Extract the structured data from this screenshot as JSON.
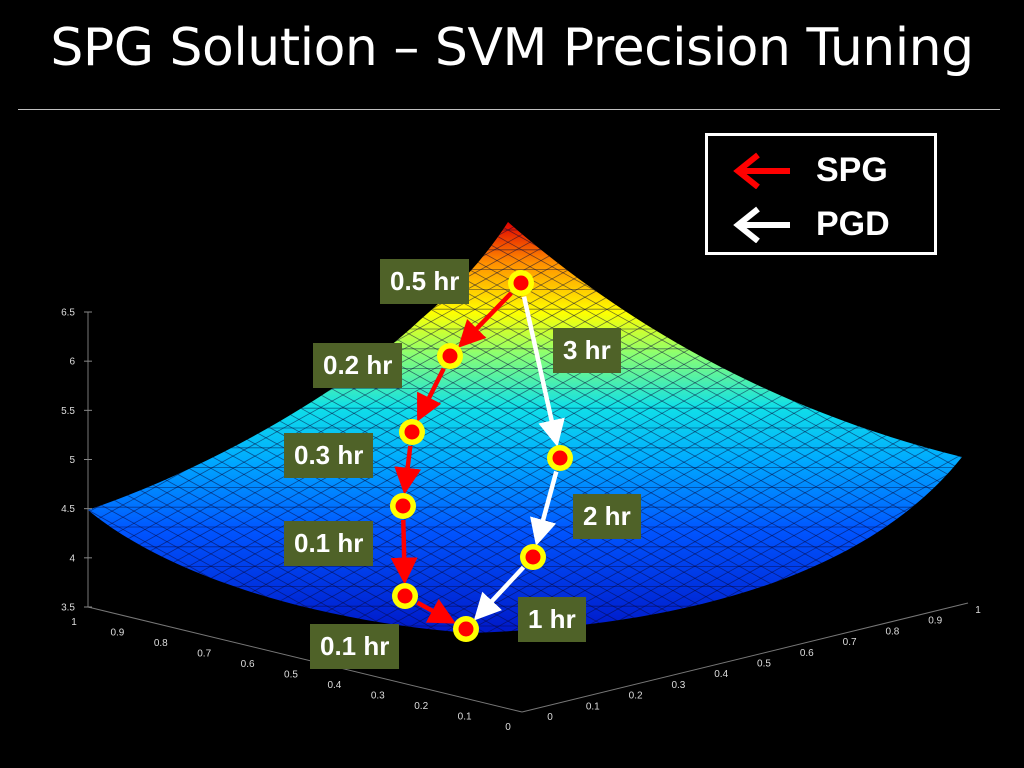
{
  "slide": {
    "title": "SPG Solution – SVM Precision Tuning"
  },
  "legend": {
    "items": [
      {
        "label": "SPG",
        "color": "#ff0000",
        "icon": "left-arrow-icon"
      },
      {
        "label": "PGD",
        "color": "#ffffff",
        "icon": "left-arrow-icon"
      }
    ]
  },
  "chart_data": {
    "type": "surface",
    "title": "",
    "z_ticks": [
      "3.5",
      "4",
      "4.5",
      "5",
      "5.5",
      "6",
      "6.5"
    ],
    "zlim": [
      3.5,
      6.5
    ],
    "x_ticks": [
      "0",
      "0.1",
      "0.2",
      "0.3",
      "0.4",
      "0.5",
      "0.6",
      "0.7",
      "0.8",
      "0.9",
      "1"
    ],
    "y_ticks": [
      "0",
      "0.1",
      "0.2",
      "0.3",
      "0.4",
      "0.5",
      "0.6",
      "0.7",
      "0.8",
      "0.9",
      "1"
    ],
    "colormap": "jet",
    "series": [
      {
        "name": "SPG",
        "color": "#ff0000",
        "step_labels": [
          "0.5 hr",
          "0.2 hr",
          "0.3 hr",
          "0.1 hr",
          "0.1 hr"
        ]
      },
      {
        "name": "PGD",
        "color": "#ffffff",
        "step_labels": [
          "3 hr",
          "2 hr",
          "1 hr"
        ]
      }
    ]
  }
}
